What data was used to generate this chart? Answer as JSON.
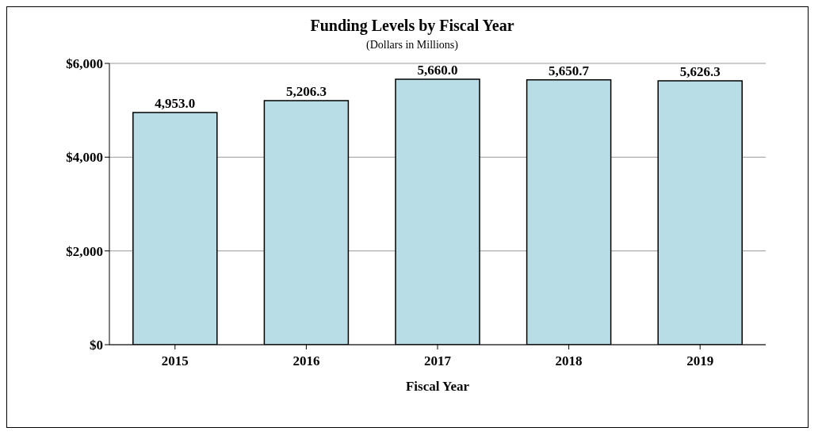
{
  "chart_data": {
    "type": "bar",
    "title": "Funding Levels by Fiscal Year",
    "subtitle": "(Dollars in Millions)",
    "xlabel": "Fiscal Year",
    "categories": [
      "2015",
      "2016",
      "2017",
      "2018",
      "2019"
    ],
    "values": [
      4953.0,
      5206.3,
      5660.0,
      5650.7,
      5626.3
    ],
    "value_labels": [
      "4,953.0",
      "5,206.3",
      "5,660.0",
      "5,650.7",
      "5,626.3"
    ],
    "color": "#b8dde6",
    "ylim": [
      0,
      6000
    ],
    "yticks": [
      {
        "value": 0,
        "label": "$0"
      },
      {
        "value": 2000,
        "label": "$2,000"
      },
      {
        "value": 4000,
        "label": "$4,000"
      },
      {
        "value": 6000,
        "label": "$6,000"
      }
    ],
    "grid": "y"
  }
}
